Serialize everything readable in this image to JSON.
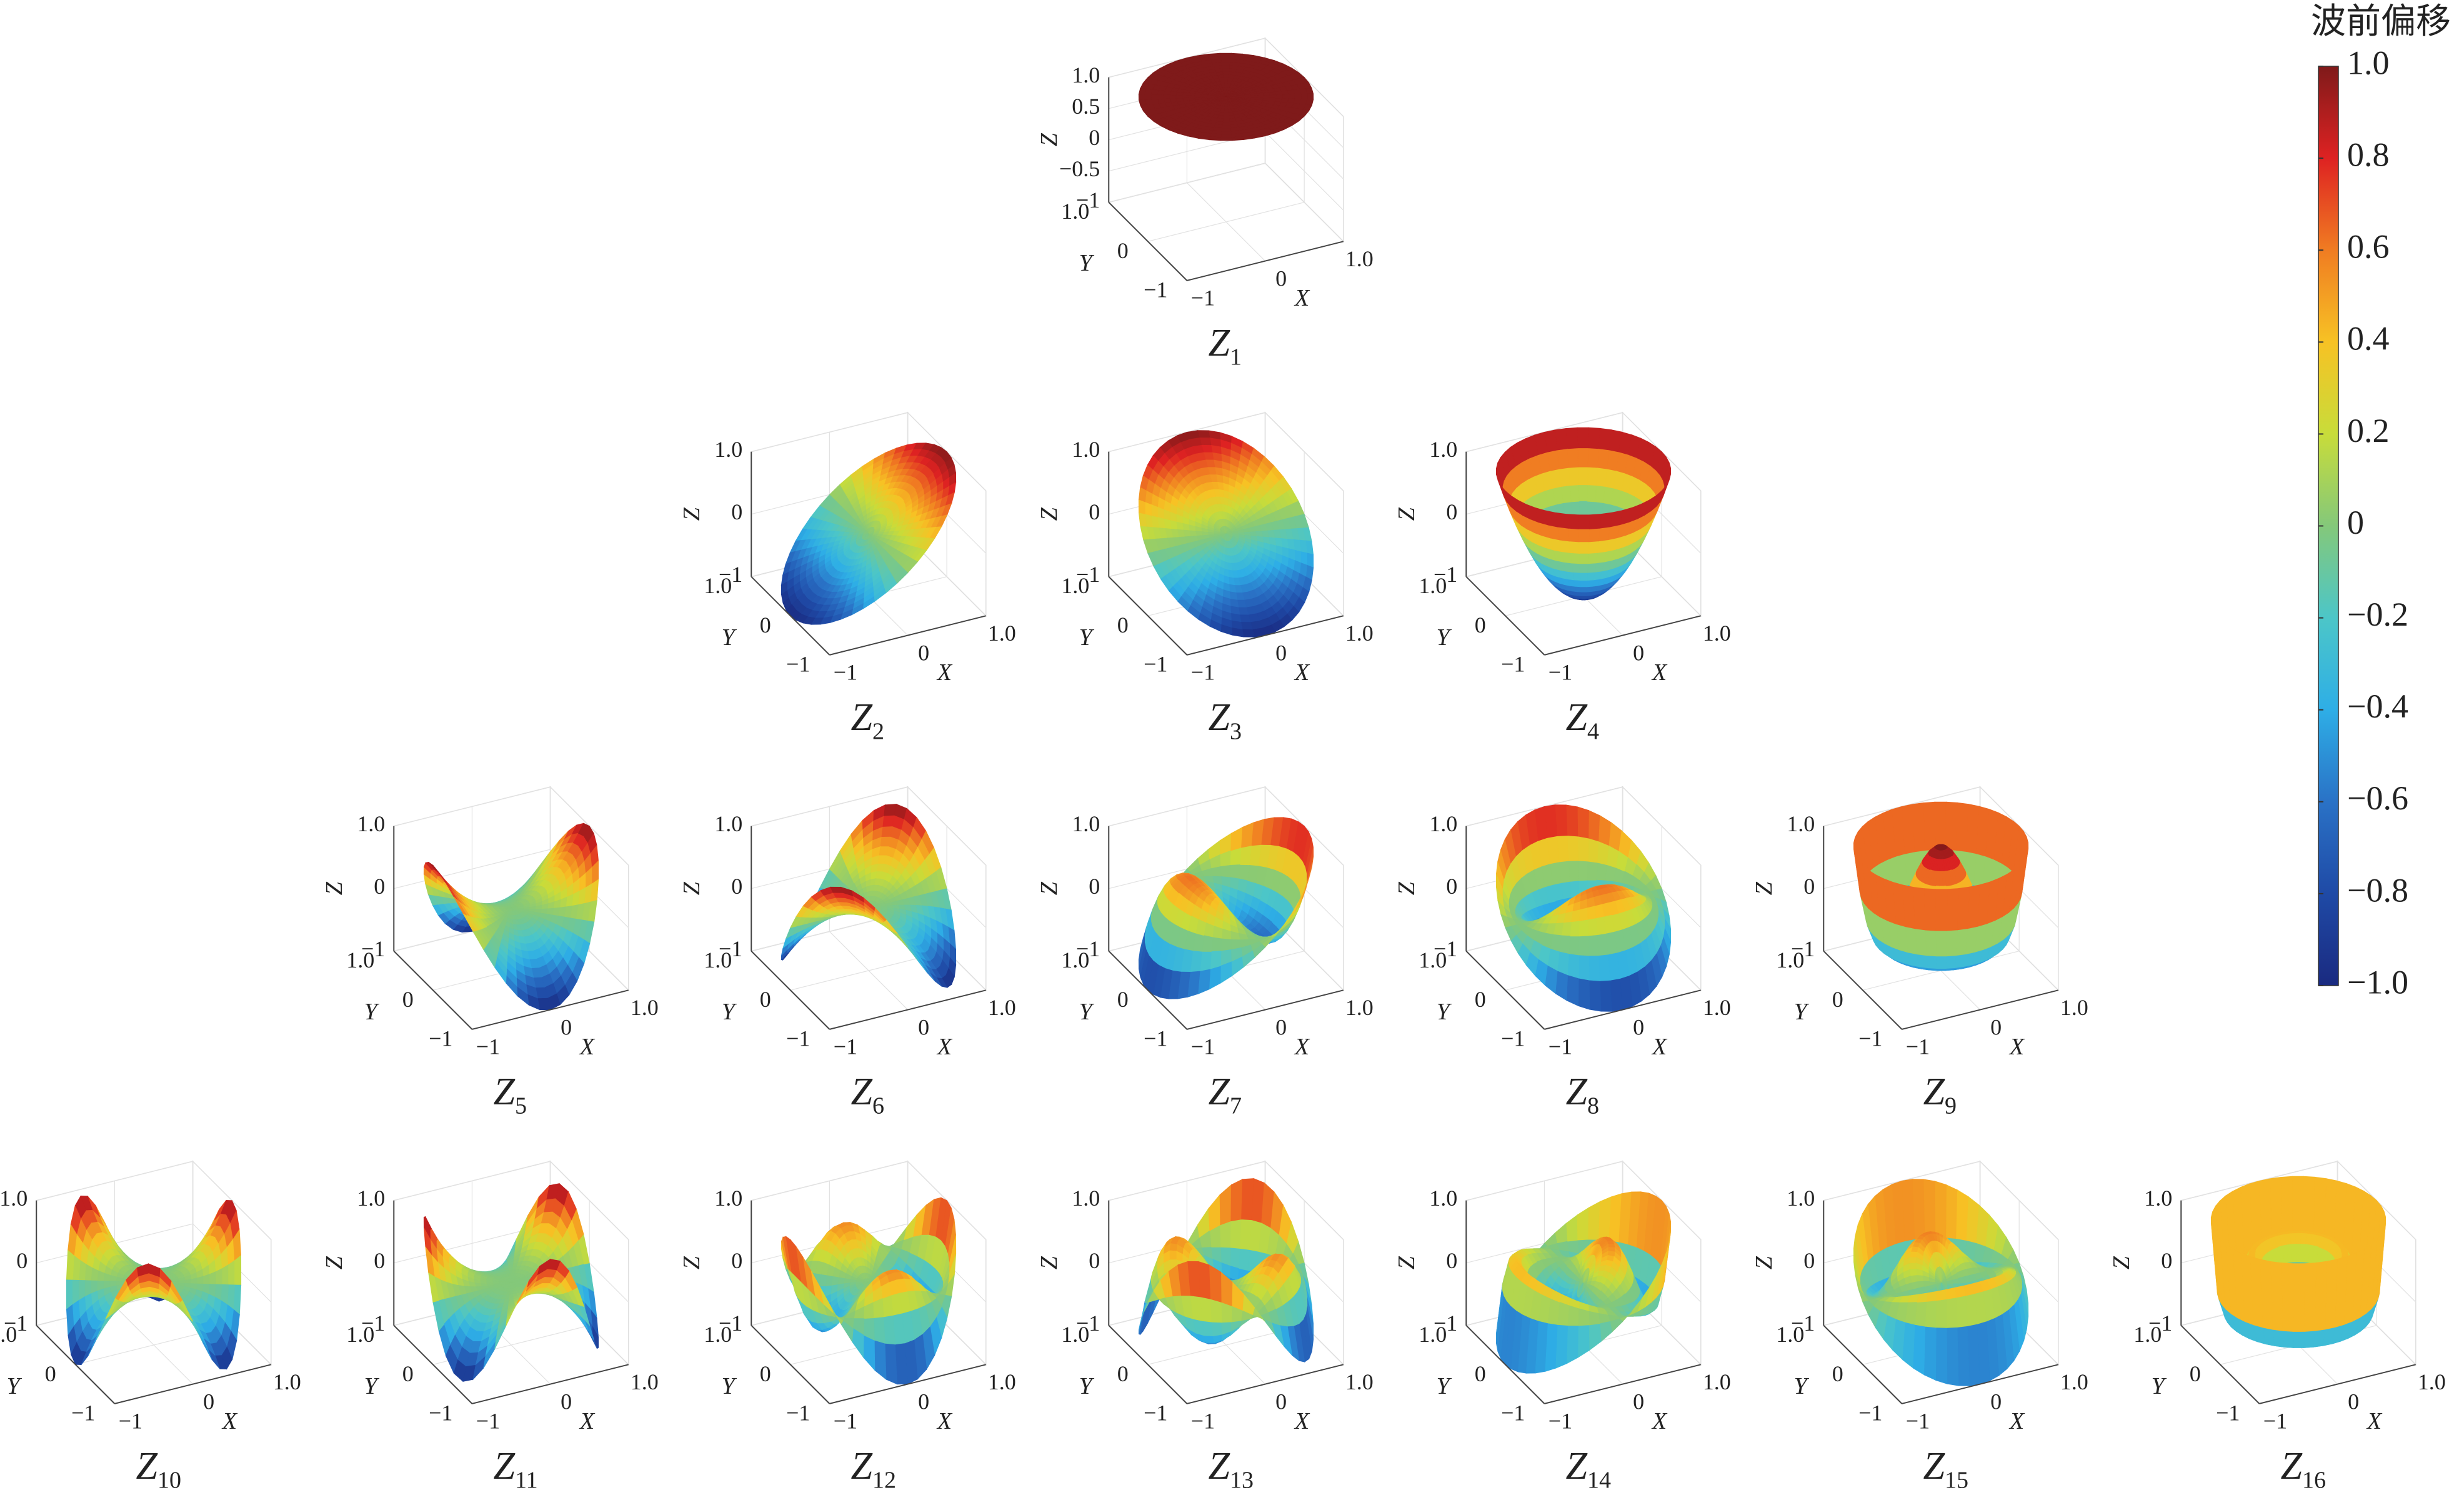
{
  "chart_data": [
    {
      "type": "surface",
      "title": "Z",
      "subscript": "1",
      "xlabel": "X",
      "ylabel": "Y",
      "zlabel": "Z",
      "xlim": [
        -1,
        1
      ],
      "ylim": [
        -1,
        1
      ],
      "zlim": [
        -1,
        1
      ],
      "xticks": [
        {
          "value": -1,
          "label": "−1"
        },
        0,
        {
          "value": 1,
          "label": "1.0"
        }
      ],
      "yticks": [
        {
          "value": -1,
          "label": "−1"
        },
        0,
        {
          "value": 1,
          "label": "1.0"
        }
      ],
      "zticks": [
        {
          "value": -1,
          "label": "−1"
        },
        {
          "value": -0.5,
          "label": "−0.5"
        },
        0,
        0.5,
        {
          "value": 1,
          "label": "1.0"
        }
      ],
      "grid": true
    },
    {
      "type": "surface",
      "title": "Z",
      "subscript": "2",
      "xlabel": "X",
      "ylabel": "Y",
      "zlabel": "Z",
      "xlim": [
        -1,
        1
      ],
      "ylim": [
        -1,
        1
      ],
      "zlim": [
        -1,
        1
      ],
      "xticks": [
        {
          "value": -1,
          "label": "−1"
        },
        0,
        {
          "value": 1,
          "label": "1.0"
        }
      ],
      "yticks": [
        {
          "value": -1,
          "label": "−1"
        },
        0,
        {
          "value": 1,
          "label": "1.0"
        }
      ],
      "zticks": [
        {
          "value": -1,
          "label": "−1"
        },
        0,
        {
          "value": 1,
          "label": "1.0"
        }
      ],
      "grid": true
    },
    {
      "type": "surface",
      "title": "Z",
      "subscript": "3",
      "xlabel": "X",
      "ylabel": "Y",
      "zlabel": "Z",
      "xlim": [
        -1,
        1
      ],
      "ylim": [
        -1,
        1
      ],
      "zlim": [
        -1,
        1
      ],
      "xticks": [
        {
          "value": -1,
          "label": "−1"
        },
        0,
        {
          "value": 1,
          "label": "1.0"
        }
      ],
      "yticks": [
        {
          "value": -1,
          "label": "−1"
        },
        0,
        {
          "value": 1,
          "label": "1.0"
        }
      ],
      "zticks": [
        {
          "value": -1,
          "label": "−1"
        },
        0,
        {
          "value": 1,
          "label": "1.0"
        }
      ],
      "grid": true
    },
    {
      "type": "surface",
      "title": "Z",
      "subscript": "4",
      "xlabel": "X",
      "ylabel": "Y",
      "zlabel": "Z",
      "xlim": [
        -1,
        1
      ],
      "ylim": [
        -1,
        1
      ],
      "zlim": [
        -1,
        1
      ],
      "xticks": [
        {
          "value": -1,
          "label": "−1"
        },
        0,
        {
          "value": 1,
          "label": "1.0"
        }
      ],
      "yticks": [
        {
          "value": -1,
          "label": "−1"
        },
        0,
        {
          "value": 1,
          "label": "1.0"
        }
      ],
      "zticks": [
        {
          "value": -1,
          "label": "−1"
        },
        0,
        {
          "value": 1,
          "label": "1.0"
        }
      ],
      "grid": true
    },
    {
      "type": "surface",
      "title": "Z",
      "subscript": "5",
      "xlabel": "X",
      "ylabel": "Y",
      "zlabel": "Z",
      "xlim": [
        -1,
        1
      ],
      "ylim": [
        -1,
        1
      ],
      "zlim": [
        -1,
        1
      ],
      "xticks": [
        {
          "value": -1,
          "label": "−1"
        },
        0,
        {
          "value": 1,
          "label": "1.0"
        }
      ],
      "yticks": [
        {
          "value": -1,
          "label": "−1"
        },
        0,
        {
          "value": 1,
          "label": "1.0"
        }
      ],
      "zticks": [
        {
          "value": -1,
          "label": "−1"
        },
        0,
        {
          "value": 1,
          "label": "1.0"
        }
      ],
      "grid": true
    },
    {
      "type": "surface",
      "title": "Z",
      "subscript": "6",
      "xlabel": "X",
      "ylabel": "Y",
      "zlabel": "Z",
      "xlim": [
        -1,
        1
      ],
      "ylim": [
        -1,
        1
      ],
      "zlim": [
        -1,
        1
      ],
      "xticks": [
        {
          "value": -1,
          "label": "−1"
        },
        0,
        {
          "value": 1,
          "label": "1.0"
        }
      ],
      "yticks": [
        {
          "value": -1,
          "label": "−1"
        },
        0,
        {
          "value": 1,
          "label": "1.0"
        }
      ],
      "zticks": [
        {
          "value": -1,
          "label": "−1"
        },
        0,
        {
          "value": 1,
          "label": "1.0"
        }
      ],
      "grid": true
    },
    {
      "type": "surface",
      "title": "Z",
      "subscript": "7",
      "xlabel": "X",
      "ylabel": "Y",
      "zlabel": "Z",
      "xlim": [
        -1,
        1
      ],
      "ylim": [
        -1,
        1
      ],
      "zlim": [
        -1,
        1
      ],
      "xticks": [
        {
          "value": -1,
          "label": "−1"
        },
        0,
        {
          "value": 1,
          "label": "1.0"
        }
      ],
      "yticks": [
        {
          "value": -1,
          "label": "−1"
        },
        0,
        {
          "value": 1,
          "label": "1.0"
        }
      ],
      "zticks": [
        {
          "value": -1,
          "label": "−1"
        },
        0,
        {
          "value": 1,
          "label": "1.0"
        }
      ],
      "grid": true
    },
    {
      "type": "surface",
      "title": "Z",
      "subscript": "8",
      "xlabel": "X",
      "ylabel": "Y",
      "zlabel": "Z",
      "xlim": [
        -1,
        1
      ],
      "ylim": [
        -1,
        1
      ],
      "zlim": [
        -1,
        1
      ],
      "xticks": [
        {
          "value": -1,
          "label": "−1"
        },
        0,
        {
          "value": 1,
          "label": "1.0"
        }
      ],
      "yticks": [
        {
          "value": -1,
          "label": "−1"
        },
        0,
        {
          "value": 1,
          "label": "1.0"
        }
      ],
      "zticks": [
        {
          "value": -1,
          "label": "−1"
        },
        0,
        {
          "value": 1,
          "label": "1.0"
        }
      ],
      "grid": true
    },
    {
      "type": "surface",
      "title": "Z",
      "subscript": "9",
      "xlabel": "X",
      "ylabel": "Y",
      "zlabel": "Z",
      "xlim": [
        -1,
        1
      ],
      "ylim": [
        -1,
        1
      ],
      "zlim": [
        -1,
        1
      ],
      "xticks": [
        {
          "value": -1,
          "label": "−1"
        },
        0,
        {
          "value": 1,
          "label": "1.0"
        }
      ],
      "yticks": [
        {
          "value": -1,
          "label": "−1"
        },
        0,
        {
          "value": 1,
          "label": "1.0"
        }
      ],
      "zticks": [
        {
          "value": -1,
          "label": "−1"
        },
        0,
        {
          "value": 1,
          "label": "1.0"
        }
      ],
      "grid": true
    },
    {
      "type": "surface",
      "title": "Z",
      "subscript": "10",
      "xlabel": "X",
      "ylabel": "Y",
      "zlabel": "Z",
      "xlim": [
        -1,
        1
      ],
      "ylim": [
        -1,
        1
      ],
      "zlim": [
        -1,
        1
      ],
      "xticks": [
        {
          "value": -1,
          "label": "−1"
        },
        0,
        {
          "value": 1,
          "label": "1.0"
        }
      ],
      "yticks": [
        {
          "value": -1,
          "label": "−1"
        },
        0,
        {
          "value": 1,
          "label": "1.0"
        }
      ],
      "zticks": [
        {
          "value": -1,
          "label": "−1"
        },
        0,
        {
          "value": 1,
          "label": "1.0"
        }
      ],
      "grid": true
    },
    {
      "type": "surface",
      "title": "Z",
      "subscript": "11",
      "xlabel": "X",
      "ylabel": "Y",
      "zlabel": "Z",
      "xlim": [
        -1,
        1
      ],
      "ylim": [
        -1,
        1
      ],
      "zlim": [
        -1,
        1
      ],
      "xticks": [
        {
          "value": -1,
          "label": "−1"
        },
        0,
        {
          "value": 1,
          "label": "1.0"
        }
      ],
      "yticks": [
        {
          "value": -1,
          "label": "−1"
        },
        0,
        {
          "value": 1,
          "label": "1.0"
        }
      ],
      "zticks": [
        {
          "value": -1,
          "label": "−1"
        },
        0,
        {
          "value": 1,
          "label": "1.0"
        }
      ],
      "grid": true
    },
    {
      "type": "surface",
      "title": "Z",
      "subscript": "12",
      "xlabel": "X",
      "ylabel": "Y",
      "zlabel": "Z",
      "xlim": [
        -1,
        1
      ],
      "ylim": [
        -1,
        1
      ],
      "zlim": [
        -1,
        1
      ],
      "xticks": [
        {
          "value": -1,
          "label": "−1"
        },
        0,
        {
          "value": 1,
          "label": "1.0"
        }
      ],
      "yticks": [
        {
          "value": -1,
          "label": "−1"
        },
        0,
        {
          "value": 1,
          "label": "1.0"
        }
      ],
      "zticks": [
        {
          "value": -1,
          "label": "−1"
        },
        0,
        {
          "value": 1,
          "label": "1.0"
        }
      ],
      "grid": true
    },
    {
      "type": "surface",
      "title": "Z",
      "subscript": "13",
      "xlabel": "X",
      "ylabel": "Y",
      "zlabel": "Z",
      "xlim": [
        -1,
        1
      ],
      "ylim": [
        -1,
        1
      ],
      "zlim": [
        -1,
        1
      ],
      "xticks": [
        {
          "value": -1,
          "label": "−1"
        },
        0,
        {
          "value": 1,
          "label": "1.0"
        }
      ],
      "yticks": [
        {
          "value": -1,
          "label": "−1"
        },
        0,
        {
          "value": 1,
          "label": "1.0"
        }
      ],
      "zticks": [
        {
          "value": -1,
          "label": "−1"
        },
        0,
        {
          "value": 1,
          "label": "1.0"
        }
      ],
      "grid": true
    },
    {
      "type": "surface",
      "title": "Z",
      "subscript": "14",
      "xlabel": "X",
      "ylabel": "Y",
      "zlabel": "Z",
      "xlim": [
        -1,
        1
      ],
      "ylim": [
        -1,
        1
      ],
      "zlim": [
        -1,
        1
      ],
      "xticks": [
        {
          "value": -1,
          "label": "−1"
        },
        0,
        {
          "value": 1,
          "label": "1.0"
        }
      ],
      "yticks": [
        {
          "value": -1,
          "label": "−1"
        },
        0,
        {
          "value": 1,
          "label": "1.0"
        }
      ],
      "zticks": [
        {
          "value": -1,
          "label": "−1"
        },
        0,
        {
          "value": 1,
          "label": "1.0"
        }
      ],
      "grid": true
    },
    {
      "type": "surface",
      "title": "Z",
      "subscript": "15",
      "xlabel": "X",
      "ylabel": "Y",
      "zlabel": "Z",
      "xlim": [
        -1,
        1
      ],
      "ylim": [
        -1,
        1
      ],
      "zlim": [
        -1,
        1
      ],
      "xticks": [
        {
          "value": -1,
          "label": "−1"
        },
        0,
        {
          "value": 1,
          "label": "1.0"
        }
      ],
      "yticks": [
        {
          "value": -1,
          "label": "−1"
        },
        0,
        {
          "value": 1,
          "label": "1.0"
        }
      ],
      "zticks": [
        {
          "value": -1,
          "label": "−1"
        },
        0,
        {
          "value": 1,
          "label": "1.0"
        }
      ],
      "grid": true
    },
    {
      "type": "surface",
      "title": "Z",
      "subscript": "16",
      "xlabel": "X",
      "ylabel": "Y",
      "zlabel": "Z",
      "xlim": [
        -1,
        1
      ],
      "ylim": [
        -1,
        1
      ],
      "zlim": [
        -1,
        1
      ],
      "xticks": [
        {
          "value": -1,
          "label": "−1"
        },
        0,
        {
          "value": 1,
          "label": "1.0"
        }
      ],
      "yticks": [
        {
          "value": -1,
          "label": "−1"
        },
        0,
        {
          "value": 1,
          "label": "1.0"
        }
      ],
      "zticks": [
        {
          "value": -1,
          "label": "−1"
        },
        0,
        {
          "value": 1,
          "label": "1.0"
        }
      ],
      "grid": true
    }
  ],
  "colorbar": {
    "title": "波前偏移",
    "lim": [
      -1,
      1
    ],
    "ticks": [
      {
        "value": 1,
        "label": "1.0"
      },
      0.8,
      0.6,
      0.4,
      0.2,
      0,
      {
        "value": -0.2,
        "label": "−0.2"
      },
      {
        "value": -0.4,
        "label": "−0.4"
      },
      {
        "value": -0.6,
        "label": "−0.6"
      },
      {
        "value": -0.8,
        "label": "−0.8"
      },
      {
        "value": -1,
        "label": "−1.0"
      }
    ],
    "colors": [
      "#1a2a80",
      "#1f4aa6",
      "#2a72c6",
      "#2eaee6",
      "#4cc6c8",
      "#84c87a",
      "#c8dc3a",
      "#f7c224",
      "#f07c22",
      "#de2222",
      "#7f1a1a"
    ]
  }
}
